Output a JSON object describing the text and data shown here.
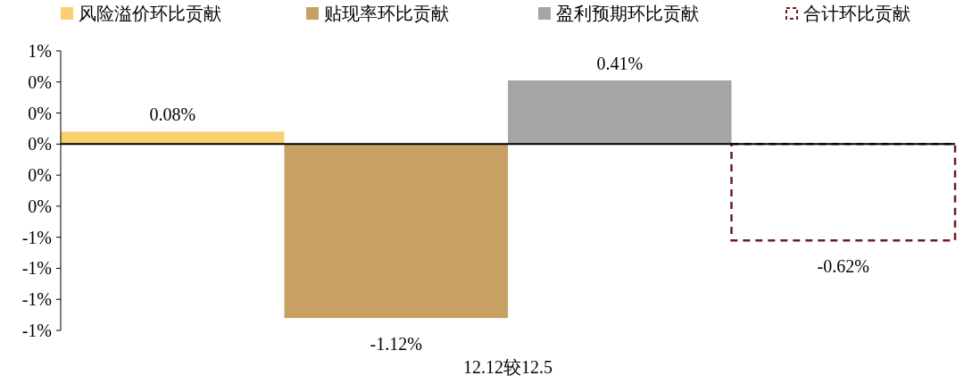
{
  "chart_data": {
    "type": "bar",
    "xlabel": "12.12较12.5",
    "categories": [
      null,
      null,
      null,
      null
    ],
    "legend": "top",
    "ylim": [
      -1.2,
      0.6
    ],
    "yticks": [
      {
        "value": 0.6,
        "label": "1%"
      },
      {
        "value": 0.4,
        "label": "0%"
      },
      {
        "value": 0.2,
        "label": "0%"
      },
      {
        "value": 0,
        "label": "0%"
      },
      {
        "value": -0.2,
        "label": "0%"
      },
      {
        "value": -0.4,
        "label": "0%"
      },
      {
        "value": -0.6,
        "label": "-1%"
      },
      {
        "value": -0.8,
        "label": "-1%"
      },
      {
        "value": -1.0,
        "label": "-1%"
      },
      {
        "value": -1.2,
        "label": "-1%"
      }
    ],
    "series": [
      {
        "name": "风险溢价环比贡献",
        "color": "#f9cf6f",
        "values": [
          0.08,
          null,
          null,
          null
        ],
        "value_labels": [
          "0.08%",
          null,
          null,
          null
        ]
      },
      {
        "name": "贴现率环比贡献",
        "color": "#c8a063",
        "values": [
          null,
          -1.12,
          null,
          null
        ],
        "value_labels": [
          null,
          "-1.12%",
          null,
          null
        ]
      },
      {
        "name": "盈利预期环比贡献",
        "color": "#a5a5a5",
        "values": [
          null,
          null,
          0.41,
          null
        ],
        "value_labels": [
          null,
          null,
          "0.41%",
          null
        ]
      },
      {
        "name": "合计环比贡献",
        "color": "#6b1d1d",
        "line_style": "dashed",
        "values": [
          null,
          null,
          null,
          -0.62
        ],
        "value_labels": [
          null,
          null,
          null,
          "-0.62%"
        ]
      }
    ]
  }
}
